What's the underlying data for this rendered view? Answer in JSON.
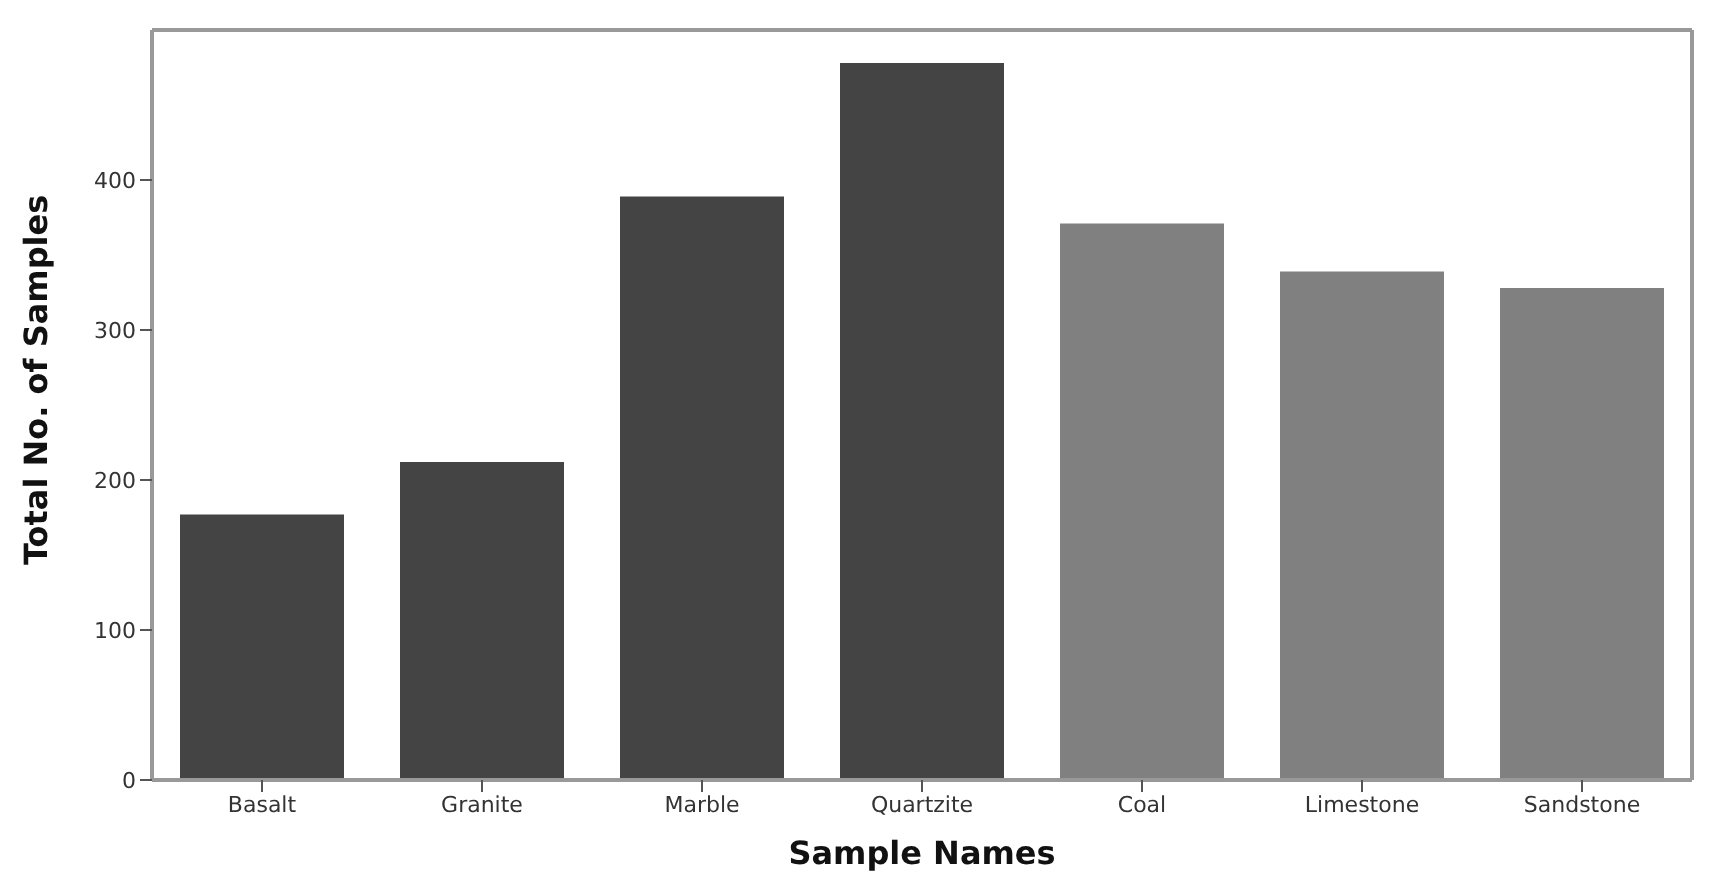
{
  "chart_data": {
    "type": "bar",
    "xlabel": "Sample Names",
    "ylabel": "Total No. of Samples",
    "categories": [
      "Basalt",
      "Granite",
      "Marble",
      "Quartzite",
      "Coal",
      "Limestone",
      "Sandstone"
    ],
    "values": [
      177,
      212,
      389,
      478,
      371,
      339,
      328
    ],
    "colors": [
      "#444444",
      "#444444",
      "#444444",
      "#444444",
      "#808080",
      "#808080",
      "#808080"
    ],
    "ylim": [
      0,
      500
    ],
    "yticks": [
      0,
      100,
      200,
      300,
      400
    ],
    "grid": false,
    "legend": false
  }
}
